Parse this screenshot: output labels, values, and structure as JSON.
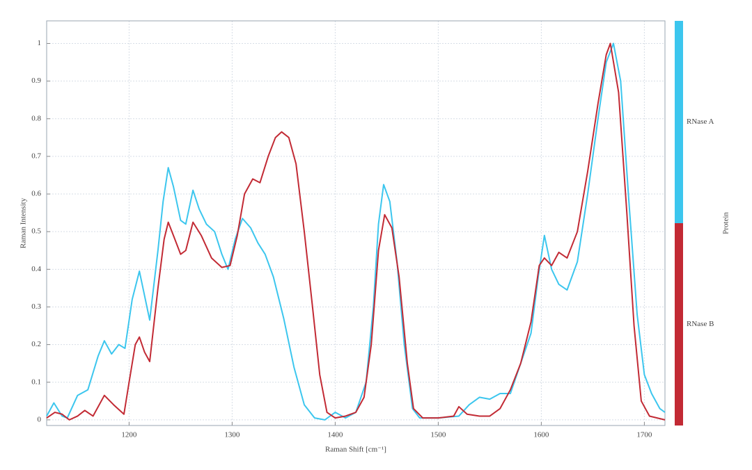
{
  "chart_data": {
    "type": "line",
    "x_label": "Raman Shift [cm⁻¹]",
    "y_label": "Raman Intensity",
    "legend_title": "Protein",
    "xlim": [
      1120,
      1720
    ],
    "ylim": [
      -0.015,
      1.06
    ],
    "xticks": [
      1200,
      1300,
      1400,
      1500,
      1600,
      1700
    ],
    "yticks": [
      0,
      0.1,
      0.2,
      0.3,
      0.4,
      0.5,
      0.6,
      0.7,
      0.8,
      0.9,
      1
    ],
    "grid": true,
    "series": [
      {
        "name": "RNase A",
        "color": "#3cc6ee",
        "x": [
          1120,
          1127,
          1135,
          1140,
          1150,
          1160,
          1170,
          1176,
          1183,
          1190,
          1196,
          1203,
          1210,
          1215,
          1220,
          1228,
          1233,
          1238,
          1243,
          1250,
          1255,
          1262,
          1268,
          1275,
          1283,
          1290,
          1296,
          1303,
          1310,
          1318,
          1325,
          1332,
          1340,
          1350,
          1360,
          1370,
          1380,
          1390,
          1400,
          1410,
          1420,
          1425,
          1430,
          1437,
          1442,
          1447,
          1453,
          1460,
          1467,
          1475,
          1482,
          1500,
          1520,
          1530,
          1540,
          1550,
          1560,
          1570,
          1580,
          1590,
          1597,
          1603,
          1610,
          1617,
          1625,
          1635,
          1645,
          1655,
          1663,
          1670,
          1677,
          1685,
          1693,
          1700,
          1707,
          1715,
          1720
        ],
        "values": [
          0.01,
          0.045,
          0.01,
          0.005,
          0.065,
          0.08,
          0.17,
          0.21,
          0.175,
          0.2,
          0.19,
          0.32,
          0.395,
          0.33,
          0.265,
          0.45,
          0.58,
          0.67,
          0.62,
          0.53,
          0.52,
          0.61,
          0.56,
          0.52,
          0.5,
          0.44,
          0.4,
          0.48,
          0.535,
          0.51,
          0.47,
          0.44,
          0.38,
          0.27,
          0.14,
          0.04,
          0.005,
          0.0,
          0.02,
          0.005,
          0.02,
          0.06,
          0.1,
          0.3,
          0.52,
          0.625,
          0.58,
          0.42,
          0.2,
          0.03,
          0.005,
          0.005,
          0.01,
          0.04,
          0.06,
          0.055,
          0.07,
          0.07,
          0.15,
          0.23,
          0.38,
          0.49,
          0.4,
          0.36,
          0.345,
          0.42,
          0.6,
          0.8,
          0.95,
          1.0,
          0.9,
          0.58,
          0.28,
          0.12,
          0.07,
          0.03,
          0.02
        ]
      },
      {
        "name": "RNase B",
        "color": "#c22a34",
        "x": [
          1120,
          1128,
          1135,
          1142,
          1150,
          1157,
          1165,
          1176,
          1185,
          1195,
          1200,
          1206,
          1210,
          1215,
          1220,
          1228,
          1234,
          1238,
          1243,
          1250,
          1255,
          1262,
          1270,
          1280,
          1290,
          1298,
          1305,
          1312,
          1320,
          1327,
          1335,
          1342,
          1348,
          1355,
          1362,
          1370,
          1378,
          1385,
          1392,
          1400,
          1410,
          1420,
          1428,
          1435,
          1442,
          1448,
          1455,
          1462,
          1470,
          1476,
          1485,
          1500,
          1515,
          1520,
          1528,
          1540,
          1550,
          1560,
          1570,
          1580,
          1590,
          1598,
          1603,
          1610,
          1617,
          1625,
          1635,
          1645,
          1655,
          1663,
          1667,
          1675,
          1683,
          1690,
          1697,
          1705,
          1720
        ],
        "values": [
          0.005,
          0.02,
          0.015,
          0.0,
          0.01,
          0.025,
          0.01,
          0.065,
          0.04,
          0.015,
          0.1,
          0.2,
          0.22,
          0.18,
          0.155,
          0.35,
          0.48,
          0.525,
          0.49,
          0.44,
          0.45,
          0.525,
          0.49,
          0.43,
          0.405,
          0.41,
          0.49,
          0.6,
          0.64,
          0.63,
          0.7,
          0.75,
          0.765,
          0.75,
          0.68,
          0.5,
          0.3,
          0.12,
          0.02,
          0.005,
          0.01,
          0.02,
          0.06,
          0.2,
          0.45,
          0.545,
          0.51,
          0.38,
          0.15,
          0.03,
          0.005,
          0.005,
          0.01,
          0.035,
          0.015,
          0.01,
          0.01,
          0.03,
          0.08,
          0.15,
          0.26,
          0.41,
          0.43,
          0.41,
          0.445,
          0.43,
          0.5,
          0.66,
          0.84,
          0.97,
          1.0,
          0.87,
          0.55,
          0.25,
          0.05,
          0.01,
          0.0
        ]
      }
    ]
  }
}
